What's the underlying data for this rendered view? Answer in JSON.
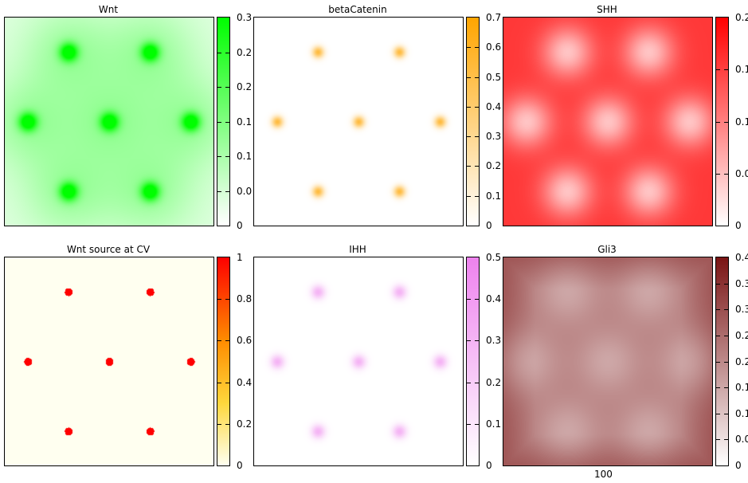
{
  "chart_data": [
    {
      "type": "heatmap",
      "title": "Wnt",
      "color_low": "#ffffff",
      "color_high": "#00ff00",
      "clim": [
        0,
        0.3
      ],
      "colorbar_ticks": [
        "0",
        "0.0",
        "0.1",
        "0.1",
        "0.2",
        "0.2",
        "0.3"
      ]
    },
    {
      "type": "heatmap",
      "title": "betaCatenin",
      "color_low": "#ffffff",
      "color_high": "#ffa500",
      "clim": [
        0,
        0.7
      ],
      "colorbar_ticks": [
        "0",
        "0.1",
        "0.2",
        "0.3",
        "0.4",
        "0.5",
        "0.6",
        "0.7"
      ]
    },
    {
      "type": "heatmap",
      "title": "SHH",
      "color_low": "#ffffff",
      "color_high": "#ff0000",
      "clim": [
        0,
        0.2
      ],
      "colorbar_ticks": [
        "0",
        "0.0",
        "0.1",
        "0.1",
        "0.2"
      ]
    },
    {
      "type": "heatmap",
      "title": "Wnt source at CV",
      "color_low": "#ffffe0",
      "color_high": "#ff0000",
      "clim": [
        0,
        1
      ],
      "colorbar_ticks": [
        "0",
        "0.2",
        "0.4",
        "0.6",
        "0.8",
        "1"
      ]
    },
    {
      "type": "heatmap",
      "title": "IHH",
      "color_low": "#ffffff",
      "color_high": "#ee82ee",
      "clim": [
        0,
        0.5
      ],
      "colorbar_ticks": [
        "0",
        "0.1",
        "0.2",
        "0.3",
        "0.4",
        "0.5"
      ]
    },
    {
      "type": "heatmap",
      "title": "Gli3",
      "color_low": "#ffffff",
      "color_high": "#7a1414",
      "clim": [
        0,
        0.4
      ],
      "colorbar_ticks": [
        "0",
        "0.0",
        "0.1",
        "0.1",
        "0.2",
        "0.2",
        "0.3",
        "0.3",
        "0.4"
      ]
    }
  ],
  "xlabel": "100"
}
